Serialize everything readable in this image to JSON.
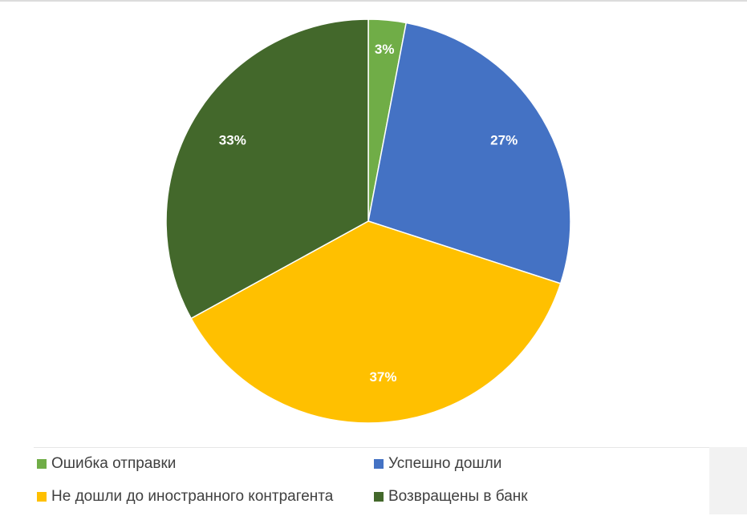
{
  "chart_data": {
    "type": "pie",
    "title": "",
    "slices": [
      {
        "label": "Ошибка отправки",
        "value": 3,
        "display": "3%",
        "color": "#70ad47"
      },
      {
        "label": "Успешно дошли",
        "value": 27,
        "display": "27%",
        "color": "#4472c4"
      },
      {
        "label": "Не дошли до иностранного контрагента",
        "value": 37,
        "display": "37%",
        "color": "#ffc000"
      },
      {
        "label": "Возвращены в банк",
        "value": 33,
        "display": "33%",
        "color": "#43682b"
      }
    ],
    "legend_position": "bottom"
  }
}
